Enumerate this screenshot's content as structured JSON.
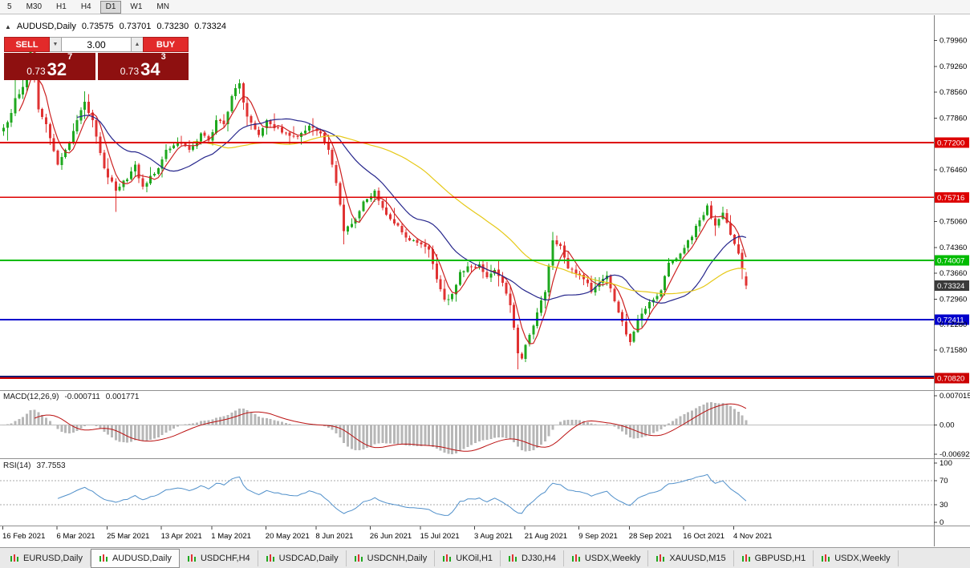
{
  "toolbar": {
    "timeframes": [
      "5",
      "M30",
      "H1",
      "H4",
      "D1",
      "W1",
      "MN"
    ],
    "active": "D1"
  },
  "icons": {
    "collapse": "▲",
    "spin_down": "▼",
    "spin_up": "▲"
  },
  "quote_header": {
    "symbol": "AUDUSD,Daily",
    "open": "0.73575",
    "high": "0.73701",
    "low": "0.73230",
    "close": "0.73324"
  },
  "trade_panel": {
    "sell_label": "SELL",
    "buy_label": "BUY",
    "volume": "3.00",
    "sell_price": {
      "prefix": "0.73",
      "pips": "32",
      "pipette": "7"
    },
    "buy_price": {
      "prefix": "0.73",
      "pips": "34",
      "pipette": "3"
    },
    "button_color": "#e22a2a",
    "price_box_color": "#8e1010"
  },
  "colors": {
    "up": "#1fa81f",
    "down": "#e03232",
    "ma_fast": "#cc2020",
    "ma_mid": "#26268c",
    "ma_slow": "#e6c918",
    "macd_hist": "#b7b7b7",
    "macd_signal": "#bb1111",
    "rsi": "#4f8fca"
  },
  "price_axis": {
    "ticks": [
      "0.79960",
      "0.79260",
      "0.78560",
      "0.77860",
      "0.76460",
      "0.75060",
      "0.74360",
      "0.73660",
      "0.72960",
      "0.72280",
      "0.71580"
    ],
    "levels": [
      {
        "value": "0.77200",
        "price": 0.772,
        "color": "#dd0000",
        "line": true,
        "width": 2
      },
      {
        "value": "0.75716",
        "price": 0.75716,
        "color": "#dd0000",
        "line": true,
        "width": 1.5
      },
      {
        "value": "0.74007",
        "price": 0.74007,
        "color": "#00bb00",
        "line": true,
        "width": 2
      },
      {
        "value": "0.73324",
        "price": 0.73324,
        "color": "#3a3a3a",
        "line": false
      },
      {
        "value": "0.72411",
        "price": 0.72411,
        "color": "#0000cc",
        "line": true,
        "width": 2
      },
      {
        "value": "0.70860",
        "price": 0.7086,
        "color": "#1a1a70",
        "line": true,
        "width": 3,
        "label": false
      },
      {
        "value": "0.70820",
        "price": 0.7082,
        "color": "#cc0000",
        "line": true,
        "width": 2
      }
    ]
  },
  "chart_data": {
    "type": "candlestick",
    "symbol": "AUDUSD",
    "timeframe": "Daily",
    "bars": 193,
    "price_range": {
      "top": 0.806,
      "bottom": 0.705
    },
    "last_ohlc": {
      "open": 0.73575,
      "high": 0.73701,
      "low": 0.7323,
      "close": 0.73324
    },
    "close_anchors": [
      [
        0,
        0.776
      ],
      [
        2,
        0.78
      ],
      [
        3,
        0.784
      ],
      [
        5,
        0.787
      ],
      [
        7,
        0.7965
      ],
      [
        9,
        0.781
      ],
      [
        11,
        0.777
      ],
      [
        14,
        0.766
      ],
      [
        17,
        0.772
      ],
      [
        19,
        0.778
      ],
      [
        21,
        0.783
      ],
      [
        23,
        0.778
      ],
      [
        26,
        0.765
      ],
      [
        29,
        0.759
      ],
      [
        32,
        0.762
      ],
      [
        34,
        0.766
      ],
      [
        36,
        0.76
      ],
      [
        38,
        0.763
      ],
      [
        40,
        0.765
      ],
      [
        42,
        0.77
      ],
      [
        45,
        0.772
      ],
      [
        48,
        0.77
      ],
      [
        51,
        0.7745
      ],
      [
        53,
        0.7725
      ],
      [
        55,
        0.778
      ],
      [
        57,
        0.777
      ],
      [
        59,
        0.7845
      ],
      [
        61,
        0.788
      ],
      [
        63,
        0.779
      ],
      [
        66,
        0.774
      ],
      [
        68,
        0.778
      ],
      [
        71,
        0.776
      ],
      [
        73,
        0.7745
      ],
      [
        76,
        0.7735
      ],
      [
        79,
        0.7765
      ],
      [
        82,
        0.7745
      ],
      [
        84,
        0.77
      ],
      [
        86,
        0.761
      ],
      [
        88,
        0.748
      ],
      [
        90,
        0.75
      ],
      [
        93,
        0.756
      ],
      [
        96,
        0.759
      ],
      [
        99,
        0.7525
      ],
      [
        102,
        0.7495
      ],
      [
        105,
        0.7455
      ],
      [
        108,
        0.7445
      ],
      [
        110,
        0.743
      ],
      [
        112,
        0.735
      ],
      [
        114,
        0.7295
      ],
      [
        116,
        0.731
      ],
      [
        118,
        0.737
      ],
      [
        121,
        0.7385
      ],
      [
        123,
        0.739
      ],
      [
        125,
        0.7355
      ],
      [
        127,
        0.7375
      ],
      [
        129,
        0.734
      ],
      [
        131,
        0.728
      ],
      [
        133,
        0.715
      ],
      [
        134,
        0.7135
      ],
      [
        136,
        0.72
      ],
      [
        138,
        0.726
      ],
      [
        140,
        0.7315
      ],
      [
        142,
        0.7455
      ],
      [
        144,
        0.744
      ],
      [
        146,
        0.738
      ],
      [
        148,
        0.7365
      ],
      [
        150,
        0.735
      ],
      [
        152,
        0.7315
      ],
      [
        154,
        0.734
      ],
      [
        156,
        0.736
      ],
      [
        158,
        0.729
      ],
      [
        160,
        0.7235
      ],
      [
        162,
        0.718
      ],
      [
        164,
        0.724
      ],
      [
        166,
        0.727
      ],
      [
        168,
        0.7295
      ],
      [
        170,
        0.732
      ],
      [
        172,
        0.7395
      ],
      [
        175,
        0.742
      ],
      [
        178,
        0.7465
      ],
      [
        180,
        0.751
      ],
      [
        182,
        0.755
      ],
      [
        184,
        0.7495
      ],
      [
        186,
        0.753
      ],
      [
        188,
        0.747
      ],
      [
        190,
        0.742
      ],
      [
        191,
        0.738
      ],
      [
        192,
        0.73324
      ]
    ],
    "wick_overrides": [
      [
        1,
        "low",
        0.7725
      ],
      [
        3,
        "high",
        0.793
      ],
      [
        7,
        "high",
        0.7993
      ],
      [
        21,
        "high",
        0.7858
      ],
      [
        29,
        "low",
        0.7532
      ],
      [
        61,
        "high",
        0.7891
      ],
      [
        88,
        "low",
        0.7445
      ],
      [
        114,
        "low",
        0.7289
      ],
      [
        133,
        "low",
        0.7106
      ],
      [
        142,
        "high",
        0.7478
      ],
      [
        162,
        "low",
        0.717
      ],
      [
        182,
        "high",
        0.7555
      ]
    ],
    "moving_averages": [
      {
        "period": 5,
        "color": "#cc2020"
      },
      {
        "period": 20,
        "color": "#26268c"
      },
      {
        "period": 50,
        "color": "#e6c918"
      }
    ],
    "x_dates": [
      {
        "label": "16 Feb 2021",
        "bar": 0
      },
      {
        "label": "6 Mar 2021",
        "bar": 14
      },
      {
        "label": "25 Mar 2021",
        "bar": 27
      },
      {
        "label": "13 Apr 2021",
        "bar": 41
      },
      {
        "label": "1 May 2021",
        "bar": 54
      },
      {
        "label": "20 May 2021",
        "bar": 68
      },
      {
        "label": "8 Jun 2021",
        "bar": 81
      },
      {
        "label": "26 Jun 2021",
        "bar": 95
      },
      {
        "label": "15 Jul 2021",
        "bar": 108
      },
      {
        "label": "3 Aug 2021",
        "bar": 122
      },
      {
        "label": "21 Aug 2021",
        "bar": 135
      },
      {
        "label": "9 Sep 2021",
        "bar": 149
      },
      {
        "label": "28 Sep 2021",
        "bar": 162
      },
      {
        "label": "16 Oct 2021",
        "bar": 176
      },
      {
        "label": "4 Nov 2021",
        "bar": 189
      }
    ],
    "indicators": {
      "macd": {
        "label": "MACD(12,26,9)",
        "value_main": "-0.000711",
        "value_signal": "0.001771",
        "axis_top": "0.007015",
        "axis_zero": "0.00",
        "axis_bottom": "-0.006923"
      },
      "rsi": {
        "label": "RSI(14)",
        "value": "37.7553",
        "upper": 70,
        "lower": 30,
        "axis": [
          "100",
          "70",
          "30",
          "0"
        ]
      }
    }
  },
  "tabs": {
    "items": [
      {
        "label": "EURUSD,Daily",
        "active": false
      },
      {
        "label": "AUDUSD,Daily",
        "active": true
      },
      {
        "label": "USDCHF,H4",
        "active": false
      },
      {
        "label": "USDCAD,Daily",
        "active": false
      },
      {
        "label": "USDCNH,Daily",
        "active": false
      },
      {
        "label": "UKOil,H1",
        "active": false
      },
      {
        "label": "DJ30,H4",
        "active": false
      },
      {
        "label": "USDX,Weekly",
        "active": false
      },
      {
        "label": "XAUUSD,M15",
        "active": false
      },
      {
        "label": "GBPUSD,H1",
        "active": false
      },
      {
        "label": "USDX,Weekly",
        "active": false
      }
    ]
  }
}
